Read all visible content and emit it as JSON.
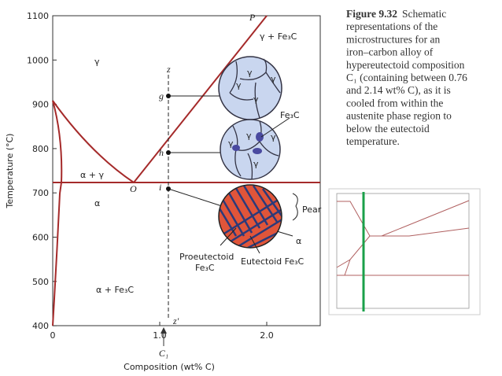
{
  "figure": {
    "y_axis_label": "Temperature (°C)",
    "x_axis_label": "Composition (wt% C)",
    "yticks": [
      "1100",
      "1000",
      "900",
      "800",
      "700",
      "600",
      "500",
      "400"
    ],
    "xticks": [
      "0",
      "1.0",
      "2.0"
    ],
    "composition_marker": "C₁",
    "labels": {
      "gamma": "γ",
      "gamma_fe3c": "γ + Fe₃C",
      "P": "P",
      "alpha_gamma": "α + γ",
      "O": "O",
      "alpha": "α",
      "alpha_fe3c": "α + Fe₃C",
      "z": "z",
      "z_prime": "z′",
      "g": "g",
      "h": "h",
      "i": "i"
    },
    "micro_labels": {
      "fe3c": "Fe₃C",
      "pearlite": "Pear",
      "alpha": "α",
      "proeutectoid_1": "Proeutectoid",
      "proeutectoid_2": "Fe₃C",
      "eutectoid": "Eutectoid Fe₃C",
      "grain": "γ"
    }
  },
  "caption": {
    "label": "Figure 9.32",
    "lines": [
      "Schematic",
      "representations of the",
      "microstructures for an",
      "iron–carbon alloy of",
      "hypereutectoid composition",
      "C₁ (containing between 0.76",
      "and 2.14 wt% C), as it is",
      "cooled from within the",
      "austenite phase region to",
      "below the eutectoid",
      "temperature."
    ]
  }
}
